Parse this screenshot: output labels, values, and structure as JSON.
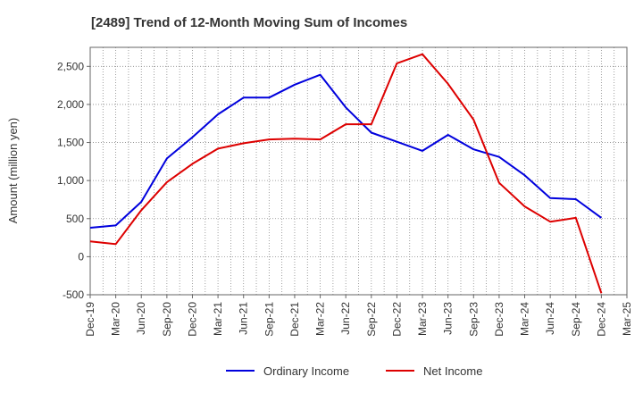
{
  "chart_data": {
    "type": "line",
    "title": "[2489]  Trend of 12-Month Moving Sum of Incomes",
    "ylabel": "Amount (million yen)",
    "xlabel": "",
    "ylim": [
      -500,
      2750
    ],
    "yticks": [
      -500,
      0,
      500,
      1000,
      1500,
      2000,
      2500
    ],
    "ytick_labels": [
      "-500",
      "0",
      "500",
      "1,000",
      "1,500",
      "2,000",
      "2,500"
    ],
    "categories": [
      "Dec-19",
      "Mar-20",
      "Jun-20",
      "Sep-20",
      "Dec-20",
      "Mar-21",
      "Jun-21",
      "Sep-21",
      "Dec-21",
      "Mar-22",
      "Jun-22",
      "Sep-22",
      "Dec-22",
      "Mar-23",
      "Jun-23",
      "Sep-23",
      "Dec-23",
      "Mar-24",
      "Jun-24",
      "Sep-24",
      "Dec-24",
      "Mar-25"
    ],
    "grid": true,
    "legend_position": "bottom",
    "series": [
      {
        "name": "Ordinary Income",
        "color": "#0000dd",
        "values": [
          380,
          410,
          720,
          1290,
          1570,
          1870,
          2090,
          2090,
          2260,
          2390,
          1960,
          1630,
          1510,
          1390,
          1600,
          1410,
          1310,
          1070,
          770,
          755,
          510,
          null
        ]
      },
      {
        "name": "Net Income",
        "color": "#dd0000",
        "values": [
          200,
          165,
          610,
          980,
          1220,
          1420,
          1490,
          1540,
          1550,
          1540,
          1740,
          1740,
          2540,
          2660,
          2270,
          1800,
          970,
          660,
          460,
          510,
          -480,
          null
        ]
      }
    ]
  }
}
